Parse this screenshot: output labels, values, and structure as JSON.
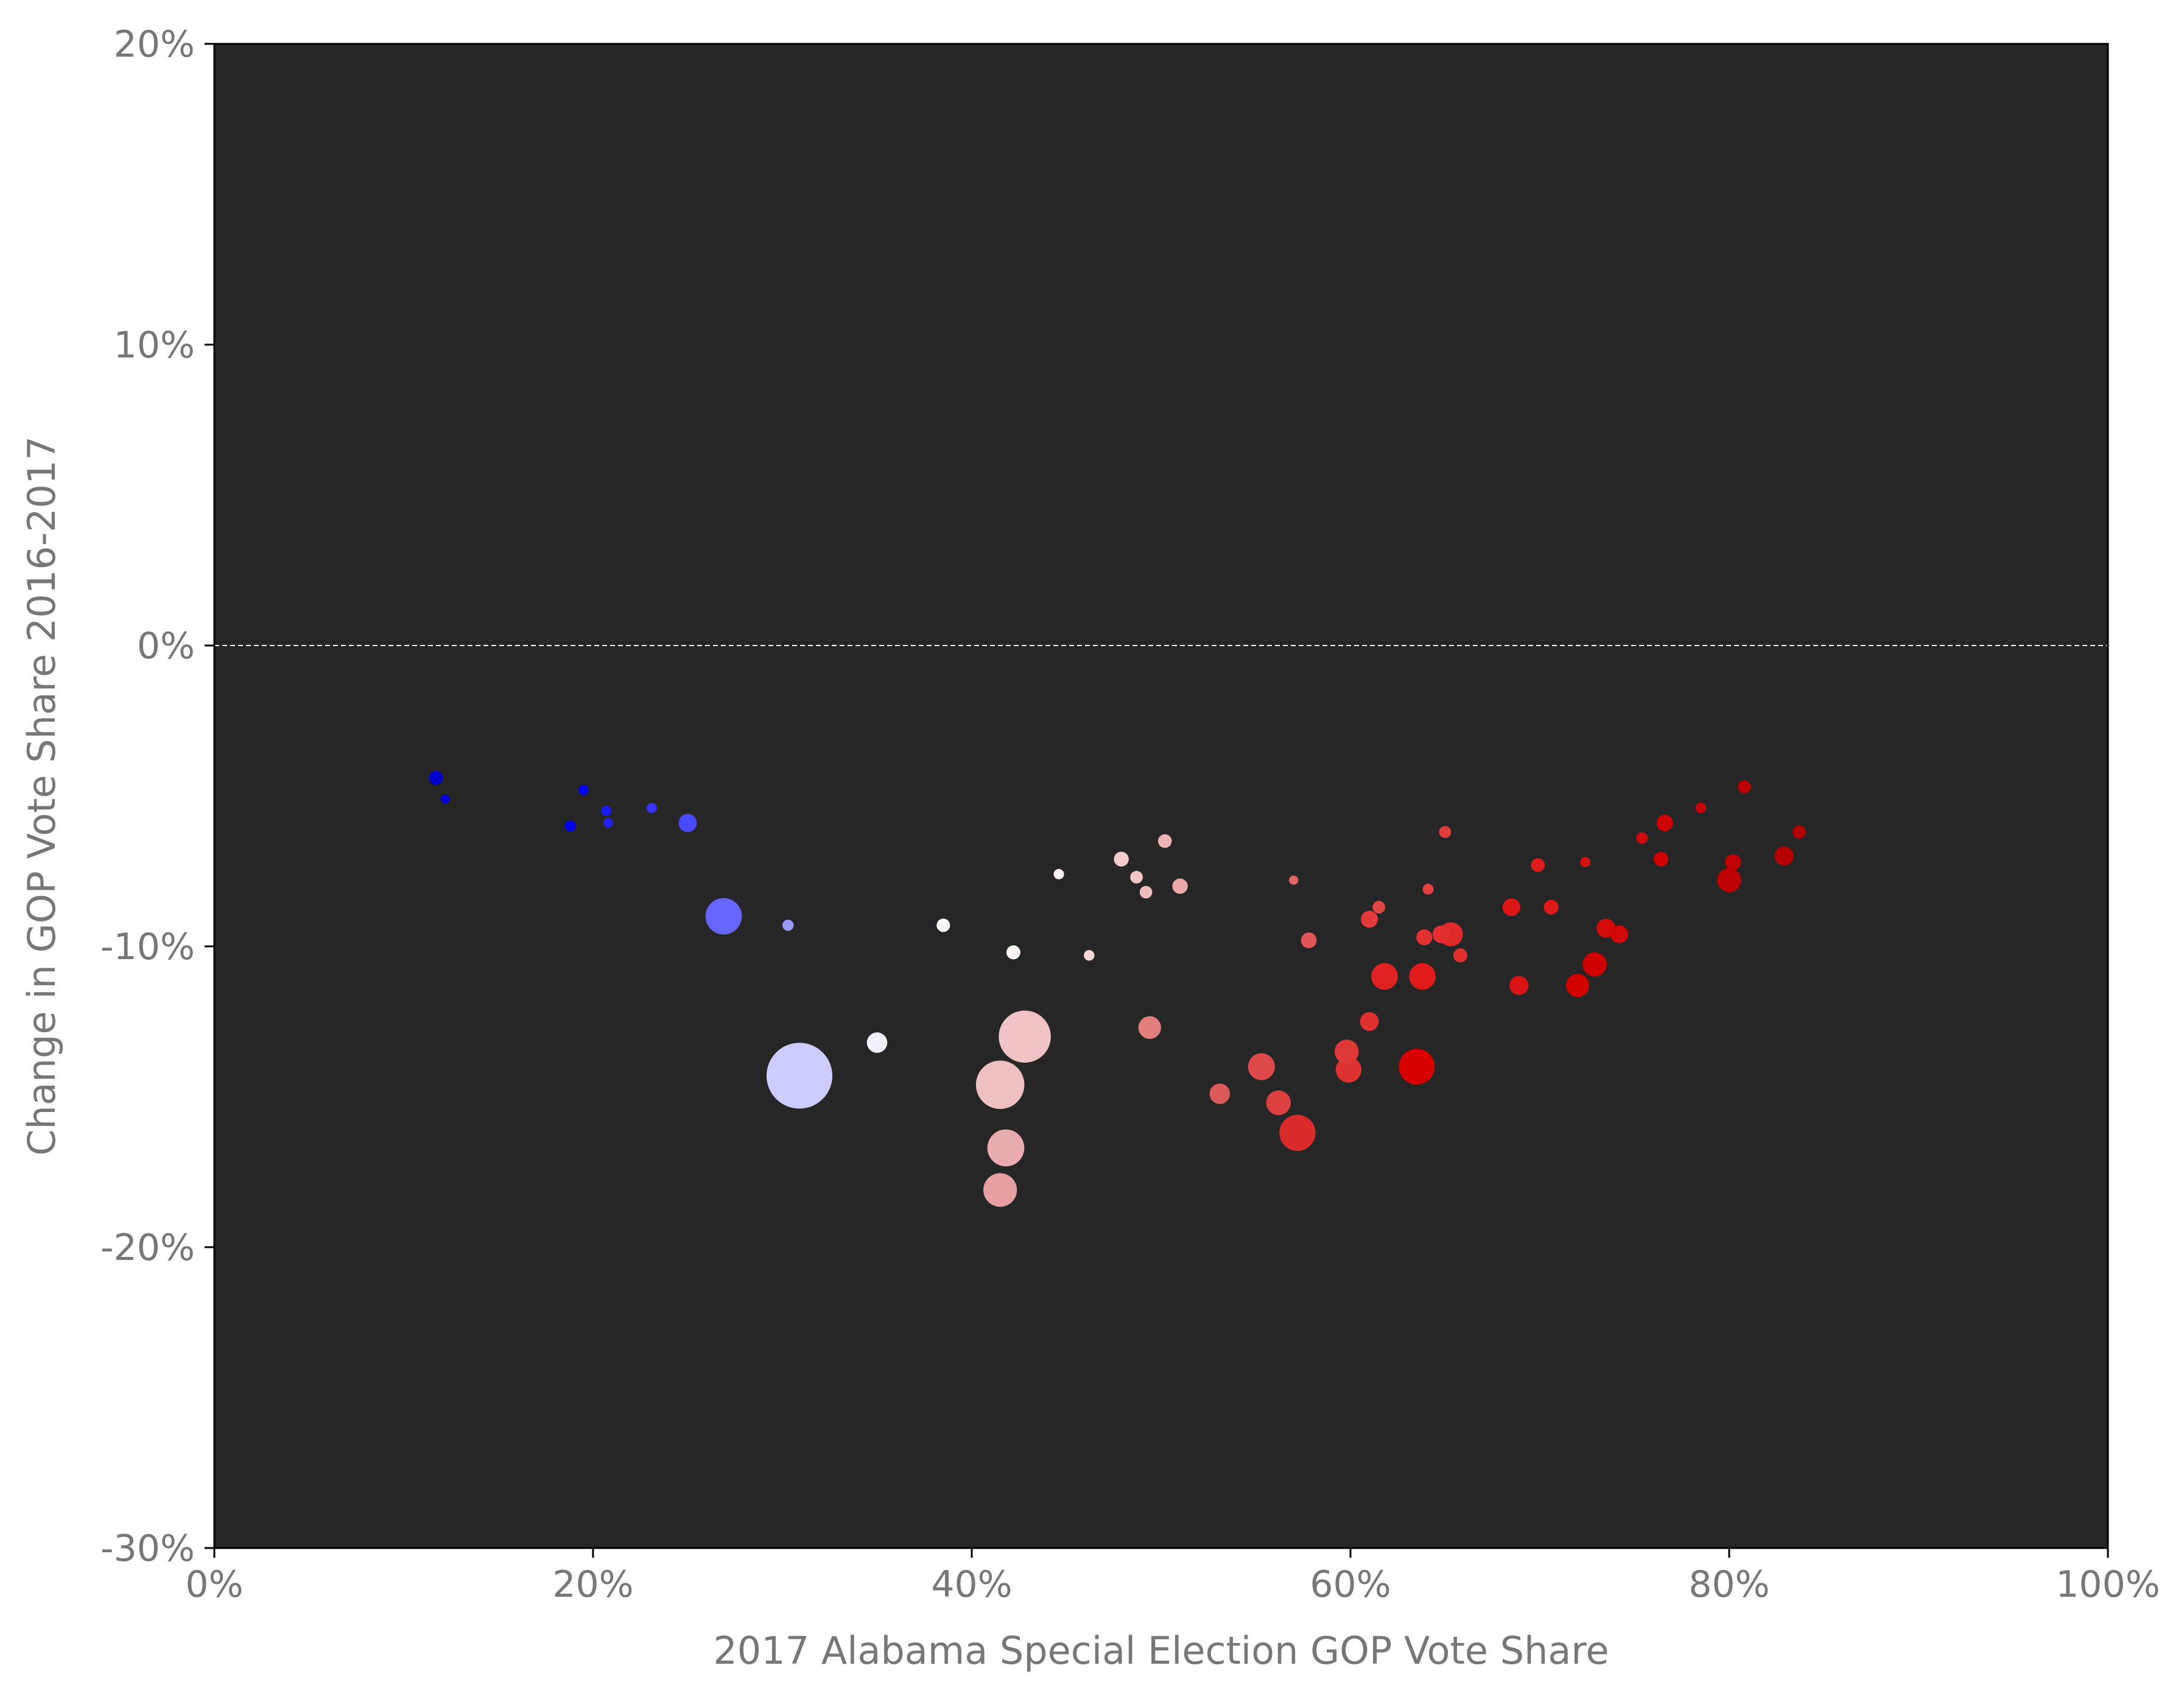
{
  "chart_data": {
    "type": "scatter",
    "title": "",
    "xlabel": "2017 Alabama Special Election GOP Vote Share",
    "ylabel": "Change in GOP Vote Share 2016-2017",
    "xlim": [
      0,
      100
    ],
    "ylim": [
      -30,
      20
    ],
    "x_ticks": [
      0,
      20,
      40,
      60,
      80,
      100
    ],
    "x_tick_labels": [
      "0%",
      "20%",
      "40%",
      "60%",
      "80%",
      "100%"
    ],
    "y_ticks": [
      20,
      10,
      0,
      -10,
      -20,
      -30
    ],
    "y_tick_labels": [
      "20%",
      "10%",
      "0%",
      "-10%",
      "-20%",
      "-30%"
    ],
    "grid": false,
    "background": "#262626",
    "reference_line": {
      "y": 0,
      "style": "dashed",
      "color": "#ffffff"
    },
    "point_size_encoding": "county size (marker area)",
    "point_color_encoding": "GOP vote share, blue (low) to white to red (high)",
    "points": [
      {
        "x": 11.7,
        "y": -4.4,
        "r": 5,
        "color": "#0000c8"
      },
      {
        "x": 12.2,
        "y": -5.1,
        "r": 3.2,
        "color": "#0000d4"
      },
      {
        "x": 18.8,
        "y": -6.0,
        "r": 4,
        "color": "#0000ea"
      },
      {
        "x": 19.5,
        "y": -4.8,
        "r": 3.6,
        "color": "#0000ff"
      },
      {
        "x": 20.7,
        "y": -5.5,
        "r": 3.6,
        "color": "#1a1aff"
      },
      {
        "x": 20.8,
        "y": -5.9,
        "r": 3.4,
        "color": "#2222ff"
      },
      {
        "x": 23.1,
        "y": -5.4,
        "r": 3.6,
        "color": "#3535ff"
      },
      {
        "x": 25.0,
        "y": -5.9,
        "r": 6.5,
        "color": "#4848ff"
      },
      {
        "x": 26.9,
        "y": -9.0,
        "r": 13,
        "color": "#6666ff"
      },
      {
        "x": 30.3,
        "y": -9.3,
        "r": 4,
        "color": "#9a9aff"
      },
      {
        "x": 30.9,
        "y": -14.3,
        "r": 23.5,
        "color": "#ccccff"
      },
      {
        "x": 35.0,
        "y": -13.2,
        "r": 7.3,
        "color": "#f0f0ff"
      },
      {
        "x": 38.5,
        "y": -9.3,
        "r": 4.8,
        "color": "#fafaff"
      },
      {
        "x": 42.2,
        "y": -10.2,
        "r": 5,
        "color": "#fff4f4"
      },
      {
        "x": 44.6,
        "y": -7.6,
        "r": 3.7,
        "color": "#fdf2f2"
      },
      {
        "x": 46.2,
        "y": -10.3,
        "r": 3.8,
        "color": "#f8d8d8"
      },
      {
        "x": 47.9,
        "y": -7.1,
        "r": 5.3,
        "color": "#f4cccc"
      },
      {
        "x": 48.7,
        "y": -7.7,
        "r": 4.5,
        "color": "#f2c6c6"
      },
      {
        "x": 49.2,
        "y": -8.2,
        "r": 4.5,
        "color": "#f0bcbc"
      },
      {
        "x": 50.2,
        "y": -6.5,
        "r": 4.9,
        "color": "#eeb4b4"
      },
      {
        "x": 51.0,
        "y": -8.0,
        "r": 5.5,
        "color": "#eaa8a8"
      },
      {
        "x": 42.8,
        "y": -13.0,
        "r": 18.6,
        "color": "#f0c4c6"
      },
      {
        "x": 41.5,
        "y": -14.6,
        "r": 17.3,
        "color": "#efc0c2"
      },
      {
        "x": 41.8,
        "y": -16.7,
        "r": 13.2,
        "color": "#e9acae"
      },
      {
        "x": 41.5,
        "y": -18.1,
        "r": 12,
        "color": "#e6a0a0"
      },
      {
        "x": 49.4,
        "y": -12.7,
        "r": 8.1,
        "color": "#e27e7e"
      },
      {
        "x": 53.1,
        "y": -14.9,
        "r": 7.3,
        "color": "#dd5a5a"
      },
      {
        "x": 55.3,
        "y": -14.0,
        "r": 9.6,
        "color": "#de4a4a"
      },
      {
        "x": 56.2,
        "y": -15.2,
        "r": 8.8,
        "color": "#dc4040"
      },
      {
        "x": 57.2,
        "y": -16.2,
        "r": 12.9,
        "color": "#da2a2a"
      },
      {
        "x": 57.0,
        "y": -7.8,
        "r": 3.3,
        "color": "#e26666"
      },
      {
        "x": 57.8,
        "y": -9.8,
        "r": 5.6,
        "color": "#e05656"
      },
      {
        "x": 59.8,
        "y": -13.5,
        "r": 8.6,
        "color": "#de3838"
      },
      {
        "x": 59.9,
        "y": -14.1,
        "r": 9.2,
        "color": "#dc3232"
      },
      {
        "x": 61.0,
        "y": -12.5,
        "r": 6.7,
        "color": "#e03030"
      },
      {
        "x": 61.0,
        "y": -9.1,
        "r": 6.1,
        "color": "#e23a3a"
      },
      {
        "x": 61.5,
        "y": -8.7,
        "r": 4.5,
        "color": "#e34444"
      },
      {
        "x": 61.8,
        "y": -11.0,
        "r": 9.5,
        "color": "#e02222"
      },
      {
        "x": 63.5,
        "y": -14.0,
        "r": 12.8,
        "color": "#d80000"
      },
      {
        "x": 63.8,
        "y": -11.0,
        "r": 9.5,
        "color": "#de1a1a"
      },
      {
        "x": 63.9,
        "y": -9.7,
        "r": 5.7,
        "color": "#e03030"
      },
      {
        "x": 64.1,
        "y": -8.1,
        "r": 3.9,
        "color": "#e24040"
      },
      {
        "x": 64.8,
        "y": -9.6,
        "r": 6.3,
        "color": "#e22e2e"
      },
      {
        "x": 65.0,
        "y": -6.2,
        "r": 4.3,
        "color": "#e23c3c"
      },
      {
        "x": 65.3,
        "y": -9.6,
        "r": 8.6,
        "color": "#e02a2a"
      },
      {
        "x": 65.8,
        "y": -10.3,
        "r": 5,
        "color": "#e03030"
      },
      {
        "x": 68.5,
        "y": -8.7,
        "r": 6.3,
        "color": "#dd1616"
      },
      {
        "x": 68.9,
        "y": -11.3,
        "r": 6.8,
        "color": "#da1414"
      },
      {
        "x": 69.9,
        "y": -7.3,
        "r": 4.9,
        "color": "#de1c1c"
      },
      {
        "x": 70.6,
        "y": -8.7,
        "r": 5.3,
        "color": "#dc1a1a"
      },
      {
        "x": 72.0,
        "y": -11.3,
        "r": 8.3,
        "color": "#d30000"
      },
      {
        "x": 72.4,
        "y": -7.2,
        "r": 3.6,
        "color": "#d81010"
      },
      {
        "x": 72.9,
        "y": -10.6,
        "r": 8.6,
        "color": "#d00000"
      },
      {
        "x": 73.5,
        "y": -9.4,
        "r": 6.8,
        "color": "#d40a0a"
      },
      {
        "x": 74.2,
        "y": -9.6,
        "r": 6.3,
        "color": "#d20808"
      },
      {
        "x": 75.4,
        "y": -6.4,
        "r": 4.1,
        "color": "#d00a0a"
      },
      {
        "x": 76.4,
        "y": -7.1,
        "r": 5.2,
        "color": "#d40000"
      },
      {
        "x": 76.6,
        "y": -5.9,
        "r": 5.9,
        "color": "#ce0000"
      },
      {
        "x": 78.5,
        "y": -5.4,
        "r": 3.8,
        "color": "#c60404"
      },
      {
        "x": 80.0,
        "y": -7.8,
        "r": 8.6,
        "color": "#bc0000"
      },
      {
        "x": 80.2,
        "y": -7.2,
        "r": 5.7,
        "color": "#c20000"
      },
      {
        "x": 80.8,
        "y": -4.7,
        "r": 4.6,
        "color": "#be0000"
      },
      {
        "x": 82.9,
        "y": -7.0,
        "r": 6.8,
        "color": "#b40000"
      },
      {
        "x": 83.7,
        "y": -6.2,
        "r": 4.7,
        "color": "#b20000"
      }
    ]
  }
}
